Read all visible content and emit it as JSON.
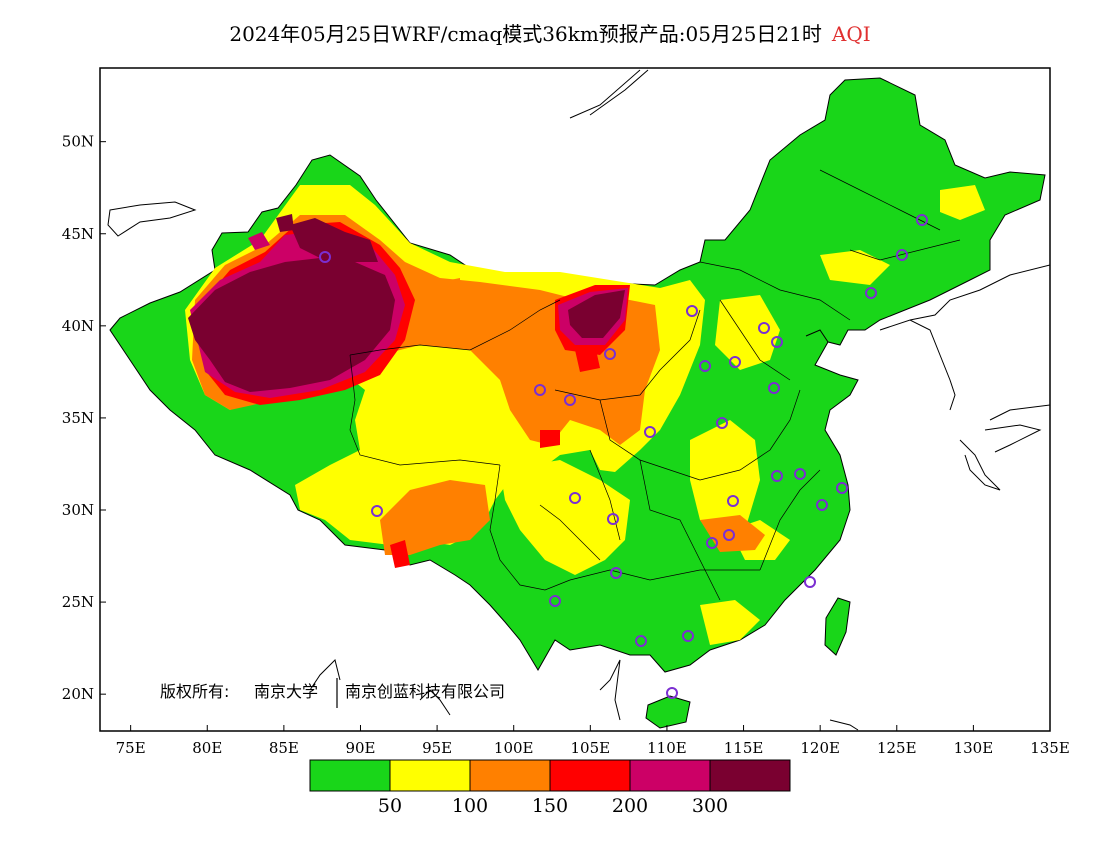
{
  "title": {
    "main": "2024年05月25日WRF/cmaq模式36km预报产品:05月25日21时",
    "variable": "AQI"
  },
  "map": {
    "lon_ticks": [
      "75E",
      "80E",
      "85E",
      "90E",
      "95E",
      "100E",
      "105E",
      "110E",
      "115E",
      "120E",
      "125E",
      "130E",
      "135E"
    ],
    "lat_ticks": [
      "50N",
      "45N",
      "40N",
      "35N",
      "30N",
      "25N",
      "20N"
    ],
    "lon_range": [
      73,
      135
    ],
    "lat_range": [
      18,
      54
    ],
    "copyright": {
      "prefix": "版权所有:",
      "org1": "南京大学",
      "org2": "南京创蓝科技有限公司"
    }
  },
  "colors": {
    "good": "#19d619",
    "moderate": "#ffff00",
    "usg": "#ff8000",
    "unhealthy": "#ff0000",
    "very_unhealthy": "#cc0066",
    "hazardous": "#7a0030",
    "station_ring": "#7b2fd1",
    "sea": "#ffffff"
  },
  "legend": {
    "breaks": [
      "50",
      "100",
      "150",
      "200",
      "300"
    ]
  }
}
